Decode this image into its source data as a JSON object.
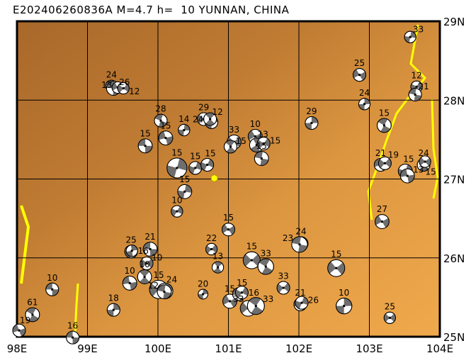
{
  "title": "E202406260836A M=4.7 h=  10 YUNNAN, CHINA",
  "map": {
    "lon_range": [
      98,
      104
    ],
    "lat_range": [
      25,
      29
    ],
    "lon_ticks": [
      {
        "v": 98,
        "label": "98E"
      },
      {
        "v": 99,
        "label": "99E"
      },
      {
        "v": 100,
        "label": "100E"
      },
      {
        "v": 101,
        "label": "101E"
      },
      {
        "v": 102,
        "label": "102E"
      },
      {
        "v": 103,
        "label": "103E"
      },
      {
        "v": 104,
        "label": "104E"
      }
    ],
    "lat_ticks": [
      {
        "v": 29,
        "label": "29N"
      },
      {
        "v": 28,
        "label": "28N"
      },
      {
        "v": 27,
        "label": "27N"
      },
      {
        "v": 26,
        "label": "26N"
      },
      {
        "v": 25,
        "label": "25N"
      }
    ],
    "colors": {
      "terrain_dark": "#a8682a",
      "terrain_mid": "#cd8a3a",
      "terrain_light": "#f2aa4c",
      "river": "#ffff00",
      "beach_dark": "#6e6e6e",
      "beach_light": "#ffffff",
      "epicenter": "#ffff00"
    }
  },
  "epicenter": {
    "lon": 100.8,
    "lat": 27.01,
    "icon": "hexagon-icon"
  },
  "events": [
    {
      "lon": 103.58,
      "lat": 28.8,
      "depth": "33",
      "mag": 4.7,
      "rot": 10
    },
    {
      "lon": 102.86,
      "lat": 28.32,
      "depth": "25",
      "mag": 5.0,
      "rot": 60
    },
    {
      "lon": 103.67,
      "lat": 28.17,
      "depth": "12",
      "mag": 4.7,
      "rot": 30
    },
    {
      "lon": 103.65,
      "lat": 28.07,
      "depth": "21",
      "mag": 5.0,
      "rot": 100
    },
    {
      "lon": 102.93,
      "lat": 27.95,
      "depth": "24",
      "mag": 4.7,
      "rot": 0
    },
    {
      "lon": 103.21,
      "lat": 27.68,
      "depth": "15",
      "mag": 5.3,
      "rot": 120
    },
    {
      "lon": 102.18,
      "lat": 27.71,
      "depth": "29",
      "mag": 5.0,
      "rot": 0
    },
    {
      "lon": 103.16,
      "lat": 27.18,
      "depth": "21",
      "mag": 5.0,
      "rot": 70
    },
    {
      "lon": 103.22,
      "lat": 27.2,
      "depth": "19",
      "mag": 5.0,
      "rot": 40
    },
    {
      "lon": 103.51,
      "lat": 27.1,
      "depth": "15",
      "mag": 5.3,
      "rot": 20
    },
    {
      "lon": 103.54,
      "lat": 27.04,
      "depth": "13",
      "mag": 5.3,
      "rot": 80
    },
    {
      "lon": 103.77,
      "lat": 27.18,
      "depth": "24",
      "mag": 5.0,
      "rot": 130
    },
    {
      "lon": 103.79,
      "lat": 27.22,
      "depth": "15",
      "mag": 4.7,
      "rot": 50
    },
    {
      "lon": 99.34,
      "lat": 28.18,
      "depth": "24",
      "mag": 4.7,
      "rot": 100
    },
    {
      "lon": 99.37,
      "lat": 28.15,
      "depth": "26",
      "mag": 5.3,
      "rot": 95
    },
    {
      "lon": 99.43,
      "lat": 28.16,
      "depth": "13",
      "mag": 4.7,
      "rot": 60
    },
    {
      "lon": 99.51,
      "lat": 28.15,
      "depth": "12",
      "mag": 4.7,
      "rot": 40
    },
    {
      "lon": 100.04,
      "lat": 27.74,
      "depth": "28",
      "mag": 5.0,
      "rot": 110
    },
    {
      "lon": 100.11,
      "lat": 27.52,
      "depth": "15",
      "mag": 5.3,
      "rot": 75
    },
    {
      "lon": 100.37,
      "lat": 27.62,
      "depth": "14",
      "mag": 4.7,
      "rot": 5
    },
    {
      "lon": 99.82,
      "lat": 27.42,
      "depth": "15",
      "mag": 5.3,
      "rot": 90
    },
    {
      "lon": 100.27,
      "lat": 27.14,
      "depth": "15",
      "mag": 6.7,
      "rot": 15
    },
    {
      "lon": 100.53,
      "lat": 27.14,
      "depth": "15",
      "mag": 5.0,
      "rot": 20
    },
    {
      "lon": 100.7,
      "lat": 27.18,
      "depth": "15",
      "mag": 5.0,
      "rot": 25
    },
    {
      "lon": 100.38,
      "lat": 26.84,
      "depth": "15",
      "mag": 5.3,
      "rot": 10
    },
    {
      "lon": 100.27,
      "lat": 26.59,
      "depth": "10",
      "mag": 4.7,
      "rot": 30
    },
    {
      "lon": 100.65,
      "lat": 27.76,
      "depth": "29",
      "mag": 5.0,
      "rot": 45
    },
    {
      "lon": 100.76,
      "lat": 27.72,
      "depth": "12",
      "mag": 5.0,
      "rot": 0
    },
    {
      "lon": 100.74,
      "lat": 27.76,
      "depth": "24",
      "mag": 5.0,
      "rot": 135
    },
    {
      "lon": 101.08,
      "lat": 27.47,
      "depth": "33",
      "mag": 5.3,
      "rot": 45
    },
    {
      "lon": 101.03,
      "lat": 27.41,
      "depth": "15",
      "mag": 5.0,
      "rot": 130
    },
    {
      "lon": 101.38,
      "lat": 27.54,
      "depth": "10",
      "mag": 5.3,
      "rot": 60
    },
    {
      "lon": 101.4,
      "lat": 27.43,
      "depth": "13",
      "mag": 5.3,
      "rot": 150
    },
    {
      "lon": 101.5,
      "lat": 27.45,
      "depth": "15",
      "mag": 5.0,
      "rot": 35
    },
    {
      "lon": 101.47,
      "lat": 27.26,
      "depth": "15",
      "mag": 5.3,
      "rot": 100
    },
    {
      "lon": 101.0,
      "lat": 26.36,
      "depth": "15",
      "mag": 5.0,
      "rot": 55
    },
    {
      "lon": 100.76,
      "lat": 26.11,
      "depth": "22",
      "mag": 4.7,
      "rot": 40
    },
    {
      "lon": 100.85,
      "lat": 25.88,
      "depth": "13",
      "mag": 4.7,
      "rot": 140
    },
    {
      "lon": 101.33,
      "lat": 25.97,
      "depth": "15",
      "mag": 6.0,
      "rot": 45
    },
    {
      "lon": 101.53,
      "lat": 25.89,
      "depth": "33",
      "mag": 5.7,
      "rot": 120
    },
    {
      "lon": 100.64,
      "lat": 25.54,
      "depth": "20",
      "mag": 4.3,
      "rot": 0
    },
    {
      "lon": 101.02,
      "lat": 25.45,
      "depth": "15",
      "mag": 5.3,
      "rot": 60
    },
    {
      "lon": 101.15,
      "lat": 25.54,
      "depth": "15",
      "mag": 5.0,
      "rot": 80
    },
    {
      "lon": 101.19,
      "lat": 25.56,
      "depth": "16",
      "mag": 5.0,
      "rot": 30
    },
    {
      "lon": 101.28,
      "lat": 25.36,
      "depth": "33",
      "mag": 5.7,
      "rot": 50
    },
    {
      "lon": 101.39,
      "lat": 25.39,
      "depth": "33",
      "mag": 6.0,
      "rot": 125
    },
    {
      "lon": 101.78,
      "lat": 25.62,
      "depth": "33",
      "mag": 5.0,
      "rot": 40
    },
    {
      "lon": 102.02,
      "lat": 25.41,
      "depth": "21",
      "mag": 5.0,
      "rot": 70
    },
    {
      "lon": 102.04,
      "lat": 25.43,
      "depth": "26",
      "mag": 5.0,
      "rot": 20
    },
    {
      "lon": 102.03,
      "lat": 26.18,
      "depth": "24",
      "mag": 5.3,
      "rot": 30
    },
    {
      "lon": 102.01,
      "lat": 26.17,
      "depth": "23",
      "mag": 5.7,
      "rot": 100
    },
    {
      "lon": 102.53,
      "lat": 25.87,
      "depth": "15",
      "mag": 6.0,
      "rot": 50
    },
    {
      "lon": 102.64,
      "lat": 25.39,
      "depth": "10",
      "mag": 5.7,
      "rot": 0
    },
    {
      "lon": 103.29,
      "lat": 25.24,
      "depth": "25",
      "mag": 4.7,
      "rot": 45
    },
    {
      "lon": 103.18,
      "lat": 26.46,
      "depth": "27",
      "mag": 5.3,
      "rot": 60
    },
    {
      "lon": 99.62,
      "lat": 26.08,
      "depth": "25",
      "mag": 5.0,
      "rot": 10
    },
    {
      "lon": 99.63,
      "lat": 26.09,
      "depth": "16",
      "mag": 4.7,
      "rot": 170
    },
    {
      "lon": 99.89,
      "lat": 26.11,
      "depth": "21",
      "mag": 5.3,
      "rot": 90
    },
    {
      "lon": 99.84,
      "lat": 25.93,
      "depth": "10",
      "mag": 5.0,
      "rot": 45
    },
    {
      "lon": 99.81,
      "lat": 25.76,
      "depth": "10",
      "mag": 5.3,
      "rot": 135
    },
    {
      "lon": 99.6,
      "lat": 25.68,
      "depth": "10",
      "mag": 5.3,
      "rot": 80
    },
    {
      "lon": 100.01,
      "lat": 25.6,
      "depth": "15",
      "mag": 6.3,
      "rot": 40
    },
    {
      "lon": 100.1,
      "lat": 25.58,
      "depth": "24",
      "mag": 5.7,
      "rot": 0
    },
    {
      "lon": 100.09,
      "lat": 25.57,
      "depth": "12",
      "mag": 5.3,
      "rot": 100
    },
    {
      "lon": 98.5,
      "lat": 25.6,
      "depth": "10",
      "mag": 5.0,
      "rot": 90
    },
    {
      "lon": 98.22,
      "lat": 25.28,
      "depth": "61",
      "mag": 5.3,
      "rot": 120
    },
    {
      "lon": 99.37,
      "lat": 25.34,
      "depth": "18",
      "mag": 5.0,
      "rot": 0
    },
    {
      "lon": 98.03,
      "lat": 25.08,
      "depth": "19",
      "mag": 5.0,
      "rot": 70
    },
    {
      "lon": 98.79,
      "lat": 24.99,
      "depth": "16",
      "mag": 5.0,
      "rot": 90
    }
  ]
}
